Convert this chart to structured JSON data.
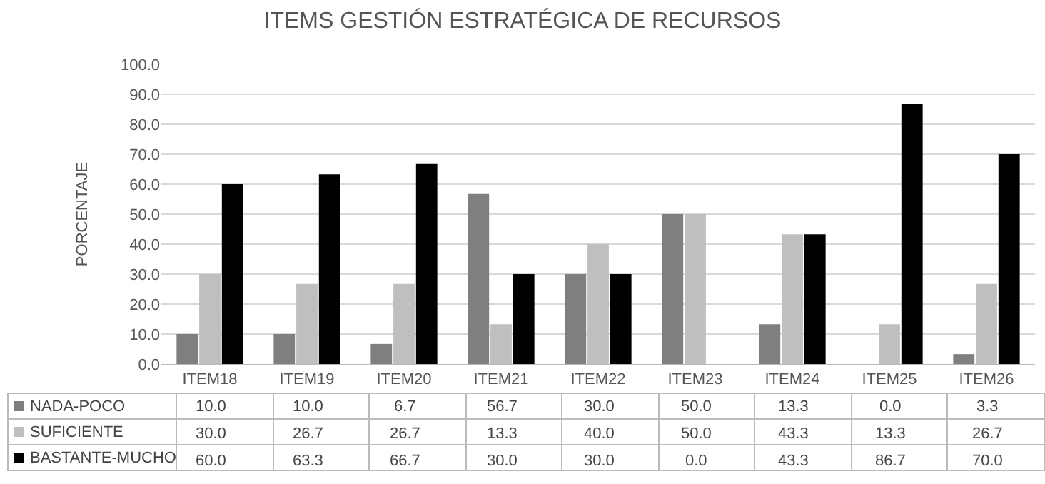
{
  "chart_data": {
    "type": "bar",
    "title": "ITEMS GESTIÓN ESTRATÉGICA DE RECURSOS",
    "ylabel": "PORCENTAJE",
    "categories": [
      "ITEM18",
      "ITEM19",
      "ITEM20",
      "ITEM21",
      "ITEM22",
      "ITEM23",
      "ITEM24",
      "ITEM25",
      "ITEM26"
    ],
    "series": [
      {
        "name": "NADA-POCO",
        "color": "#7f7f7f",
        "values": [
          10.0,
          10.0,
          6.7,
          56.7,
          30.0,
          50.0,
          13.3,
          0.0,
          3.3
        ],
        "value_labels": [
          "10.0",
          "10.0",
          "6.7",
          "56.7",
          "30.0",
          "50.0",
          "13.3",
          "0.0",
          "3.3"
        ]
      },
      {
        "name": "SUFICIENTE",
        "color": "#bfbfbf",
        "values": [
          30.0,
          26.7,
          26.7,
          13.3,
          40.0,
          50.0,
          43.3,
          13.3,
          26.7
        ],
        "value_labels": [
          "30.0",
          "26.7",
          "26.7",
          "13.3",
          "40.0",
          "50.0",
          "43.3",
          "13.3",
          "26.7"
        ]
      },
      {
        "name": "BASTANTE-MUCHO",
        "color": "#000000",
        "values": [
          60.0,
          63.3,
          66.7,
          30.0,
          30.0,
          0.0,
          43.3,
          86.7,
          70.0
        ],
        "value_labels": [
          "60.0",
          "63.3",
          "66.7",
          "30.0",
          "30.0",
          "0.0",
          "43.3",
          "86.7",
          "70.0"
        ]
      }
    ],
    "ylim": [
      0,
      100
    ],
    "yticks": [
      {
        "value": 0,
        "label": "0.0"
      },
      {
        "value": 10,
        "label": "10.0"
      },
      {
        "value": 20,
        "label": "20.0"
      },
      {
        "value": 30,
        "label": "30.0"
      },
      {
        "value": 40,
        "label": "40.0"
      },
      {
        "value": 50,
        "label": "50.0"
      },
      {
        "value": 60,
        "label": "60.0"
      },
      {
        "value": 70,
        "label": "70.0"
      },
      {
        "value": 80,
        "label": "80.0"
      },
      {
        "value": 90,
        "label": "90.0"
      },
      {
        "value": 100,
        "label": "100.0"
      }
    ],
    "grid": "y",
    "legend": "bottom"
  }
}
